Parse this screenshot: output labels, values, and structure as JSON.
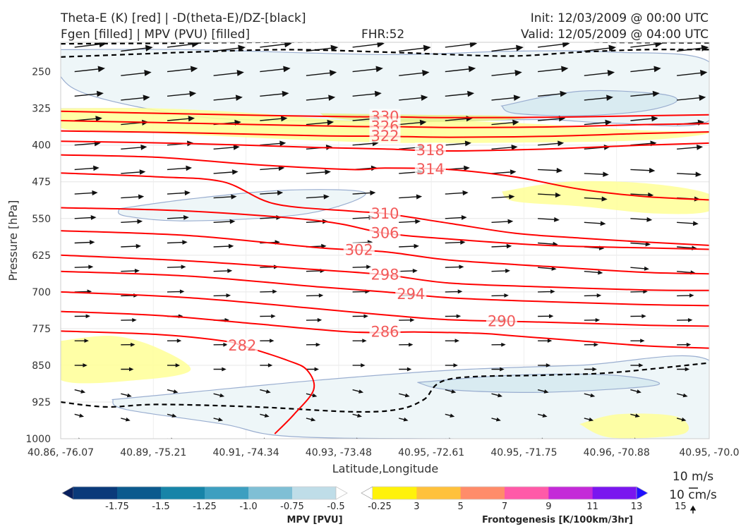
{
  "title": {
    "line1_left": "Theta-E (K) [red] | -D(theta-E)/DZ-[black]",
    "line2_left": "Fgen [filled] | MPV (PVU) [filled]",
    "fhr": "FHR:52",
    "init": "Init: 12/03/2009 @ 00:00 UTC",
    "valid": "Valid: 12/05/2009 @ 04:00 UTC"
  },
  "colors": {
    "theta_e": "#ff0000",
    "theta_e_label": "#f25a5a",
    "ddz": "#000000",
    "fgen_light": "#ffff8c",
    "mpv_light": "#eef6f8",
    "vector": "#111111"
  },
  "vector_key": {
    "label1": "10 m/s",
    "label2": "10 cm/s"
  },
  "chart_data": {
    "type": "cross-section",
    "xlabel": "Latitude,Longitude",
    "ylabel": "Pressure [hPa]",
    "x_ticks": [
      "40.86, -76.07",
      "40.89, -75.21",
      "40.91, -74.34",
      "40.93, -73.48",
      "40.95, -72.61",
      "40.95, -71.75",
      "40.96, -70.88",
      "40.95, -70.0"
    ],
    "y_ticks": [
      250,
      325,
      400,
      475,
      550,
      625,
      700,
      775,
      850,
      925,
      1000
    ],
    "ylim": [
      1000,
      190
    ],
    "grid": true,
    "theta_e_contours": [
      {
        "value": 330,
        "label": "330",
        "points": [
          [
            0,
            331
          ],
          [
            0.15,
            335
          ],
          [
            0.3,
            339
          ],
          [
            0.45,
            342
          ],
          [
            0.5,
            342
          ],
          [
            0.6,
            344
          ],
          [
            0.75,
            343
          ],
          [
            0.9,
            340
          ],
          [
            1,
            338
          ]
        ]
      },
      {
        "value": 326,
        "label": "326",
        "points": [
          [
            0,
            350
          ],
          [
            0.15,
            354
          ],
          [
            0.3,
            358
          ],
          [
            0.45,
            362
          ],
          [
            0.5,
            362
          ],
          [
            0.6,
            364
          ],
          [
            0.75,
            363
          ],
          [
            0.9,
            358
          ],
          [
            1,
            356
          ]
        ]
      },
      {
        "value": 322,
        "label": "322",
        "points": [
          [
            0,
            371
          ],
          [
            0.2,
            375
          ],
          [
            0.4,
            381
          ],
          [
            0.5,
            382
          ],
          [
            0.6,
            384
          ],
          [
            0.75,
            382
          ],
          [
            0.9,
            376
          ],
          [
            1,
            373
          ]
        ]
      },
      {
        "value": 318,
        "label": "318",
        "points": [
          [
            0,
            392
          ],
          [
            0.2,
            397
          ],
          [
            0.4,
            405
          ],
          [
            0.5,
            408
          ],
          [
            0.6,
            412
          ],
          [
            0.75,
            408
          ],
          [
            0.9,
            400
          ],
          [
            1,
            396
          ]
        ]
      },
      {
        "value": 314,
        "label": "314",
        "points": [
          [
            0,
            420
          ],
          [
            0.15,
            425
          ],
          [
            0.3,
            440
          ],
          [
            0.45,
            450
          ],
          [
            0.5,
            447
          ],
          [
            0.6,
            450
          ],
          [
            0.7,
            465
          ],
          [
            0.8,
            490
          ],
          [
            0.9,
            505
          ],
          [
            1,
            512
          ]
        ]
      },
      {
        "value": 310,
        "label": "310",
        "points": [
          [
            0,
            457
          ],
          [
            0.15,
            465
          ],
          [
            0.25,
            475
          ],
          [
            0.33,
            520
          ],
          [
            0.45,
            535
          ],
          [
            0.5,
            540
          ],
          [
            0.6,
            560
          ],
          [
            0.7,
            580
          ],
          [
            0.8,
            590
          ],
          [
            0.9,
            598
          ],
          [
            1,
            605
          ]
        ]
      },
      {
        "value": 306,
        "label": "306",
        "points": [
          [
            0,
            528
          ],
          [
            0.2,
            535
          ],
          [
            0.4,
            555
          ],
          [
            0.5,
            580
          ],
          [
            0.6,
            592
          ],
          [
            0.75,
            605
          ],
          [
            0.9,
            610
          ],
          [
            1,
            613
          ]
        ]
      },
      {
        "value": 302,
        "label": "302",
        "points": [
          [
            0,
            575
          ],
          [
            0.2,
            585
          ],
          [
            0.4,
            610
          ],
          [
            0.5,
            618
          ],
          [
            0.6,
            635
          ],
          [
            0.75,
            648
          ],
          [
            0.9,
            660
          ],
          [
            1,
            663
          ]
        ]
      },
      {
        "value": 298,
        "label": "298",
        "points": [
          [
            0,
            625
          ],
          [
            0.2,
            637
          ],
          [
            0.4,
            655
          ],
          [
            0.5,
            665
          ],
          [
            0.6,
            682
          ],
          [
            0.75,
            690
          ],
          [
            0.9,
            696
          ],
          [
            1,
            697
          ]
        ]
      },
      {
        "value": 294,
        "label": "294",
        "points": [
          [
            0,
            658
          ],
          [
            0.2,
            668
          ],
          [
            0.4,
            690
          ],
          [
            0.5,
            700
          ],
          [
            0.6,
            712
          ],
          [
            0.75,
            720
          ],
          [
            0.9,
            726
          ],
          [
            1,
            728
          ]
        ]
      },
      {
        "value": 290,
        "label": "290",
        "points": [
          [
            0,
            700
          ],
          [
            0.2,
            712
          ],
          [
            0.4,
            735
          ],
          [
            0.5,
            747
          ],
          [
            0.6,
            757
          ],
          [
            0.75,
            762
          ],
          [
            0.9,
            768
          ],
          [
            1,
            770
          ]
        ]
      },
      {
        "value": 286,
        "label": "286",
        "points": [
          [
            0,
            740
          ],
          [
            0.15,
            748
          ],
          [
            0.3,
            765
          ],
          [
            0.45,
            782
          ],
          [
            0.55,
            782
          ],
          [
            0.65,
            785
          ],
          [
            0.7,
            790
          ],
          [
            0.8,
            800
          ],
          [
            0.9,
            810
          ],
          [
            1,
            815
          ]
        ]
      },
      {
        "value": 282,
        "label": "282",
        "points": [
          [
            0,
            780
          ],
          [
            0.15,
            787
          ],
          [
            0.25,
            800
          ],
          [
            0.28,
            810
          ],
          [
            0.35,
            840
          ],
          [
            0.38,
            860
          ],
          [
            0.39,
            900
          ],
          [
            0.36,
            950
          ],
          [
            0.33,
            990
          ]
        ]
      }
    ],
    "ddz_contours": [
      {
        "points": [
          [
            0,
            193
          ],
          [
            0.15,
            192
          ],
          [
            0.3,
            190
          ],
          [
            0.45,
            189
          ],
          [
            0.6,
            189
          ],
          [
            0.75,
            187
          ],
          [
            0.85,
            190
          ],
          [
            1,
            191
          ]
        ]
      },
      {
        "points": [
          [
            0,
            220
          ],
          [
            0.1,
            215
          ],
          [
            0.2,
            210
          ],
          [
            0.35,
            205
          ],
          [
            0.5,
            210
          ],
          [
            0.6,
            215
          ],
          [
            0.7,
            218
          ],
          [
            0.8,
            210
          ],
          [
            0.9,
            205
          ],
          [
            1,
            205
          ]
        ]
      },
      {
        "points": [
          [
            0,
            925
          ],
          [
            0.07,
            935
          ],
          [
            0.15,
            930
          ],
          [
            0.3,
            935
          ],
          [
            0.45,
            945
          ],
          [
            0.52,
            940
          ],
          [
            0.56,
            920
          ],
          [
            0.6,
            878
          ],
          [
            0.75,
            870
          ],
          [
            0.85,
            865
          ],
          [
            1,
            845
          ]
        ]
      }
    ],
    "fgen_regions": [
      {
        "level": "3",
        "points": [
          [
            0,
            325
          ],
          [
            0.15,
            325
          ],
          [
            0.3,
            335
          ],
          [
            0.45,
            350
          ],
          [
            0.6,
            350
          ],
          [
            0.75,
            358
          ],
          [
            0.9,
            370
          ],
          [
            1,
            375
          ],
          [
            0.9,
            390
          ],
          [
            0.7,
            395
          ],
          [
            0.5,
            395
          ],
          [
            0.3,
            385
          ],
          [
            0.1,
            372
          ],
          [
            0,
            365
          ]
        ]
      },
      {
        "level": "5",
        "points": [
          [
            0.4,
            335
          ],
          [
            0.55,
            338
          ],
          [
            0.68,
            340
          ],
          [
            0.72,
            345
          ],
          [
            0.62,
            352
          ],
          [
            0.5,
            352
          ],
          [
            0.42,
            345
          ]
        ]
      },
      {
        "level": "3",
        "points": [
          [
            0.68,
            495
          ],
          [
            0.78,
            475
          ],
          [
            0.9,
            478
          ],
          [
            1,
            500
          ],
          [
            1,
            535
          ],
          [
            0.92,
            540
          ],
          [
            0.8,
            525
          ],
          [
            0.7,
            515
          ]
        ]
      },
      {
        "level": "3",
        "points": [
          [
            0,
            800
          ],
          [
            0.08,
            790
          ],
          [
            0.15,
            815
          ],
          [
            0.2,
            860
          ],
          [
            0.12,
            880
          ],
          [
            0,
            880
          ]
        ]
      },
      {
        "level": "3",
        "points": [
          [
            0.8,
            970
          ],
          [
            0.86,
            950
          ],
          [
            0.95,
            955
          ],
          [
            0.96,
            990
          ],
          [
            0.85,
            998
          ]
        ]
      }
    ],
    "mpv_regions": [
      {
        "level": "-0.25",
        "points": [
          [
            0,
            205
          ],
          [
            0.2,
            205
          ],
          [
            0.5,
            215
          ],
          [
            0.7,
            208
          ],
          [
            0.85,
            210
          ],
          [
            1,
            230
          ],
          [
            1,
            350
          ],
          [
            0.85,
            355
          ],
          [
            0.75,
            348
          ],
          [
            0.6,
            350
          ],
          [
            0.35,
            350
          ],
          [
            0.2,
            340
          ],
          [
            0.05,
            300
          ],
          [
            0,
            260
          ]
        ]
      },
      {
        "level": "-0.5",
        "points": [
          [
            0.68,
            320
          ],
          [
            0.8,
            290
          ],
          [
            0.92,
            295
          ],
          [
            0.95,
            310
          ],
          [
            0.9,
            330
          ],
          [
            0.8,
            340
          ],
          [
            0.7,
            335
          ]
        ]
      },
      {
        "level": "-0.25",
        "points": [
          [
            0.09,
            530
          ],
          [
            0.2,
            510
          ],
          [
            0.35,
            492
          ],
          [
            0.47,
            498
          ],
          [
            0.38,
            540
          ],
          [
            0.2,
            555
          ],
          [
            0.1,
            545
          ]
        ]
      },
      {
        "level": "-0.25",
        "points": [
          [
            0.08,
            920
          ],
          [
            0.2,
            905
          ],
          [
            0.4,
            880
          ],
          [
            0.6,
            860
          ],
          [
            0.8,
            850
          ],
          [
            1,
            840
          ],
          [
            1,
            1000
          ],
          [
            0.6,
            1000
          ],
          [
            0.35,
            995
          ],
          [
            0.25,
            970
          ],
          [
            0.1,
            940
          ]
        ]
      },
      {
        "level": "-0.5",
        "points": [
          [
            0.55,
            885
          ],
          [
            0.7,
            870
          ],
          [
            0.85,
            870
          ],
          [
            0.92,
            890
          ],
          [
            0.75,
            905
          ],
          [
            0.6,
            900
          ]
        ]
      }
    ],
    "colorbar_mpv": {
      "label": "MPV [PVU]",
      "ticks": [
        "-1.75",
        "-1.5",
        "-1.25",
        "-1.0",
        "-0.75",
        "-0.5",
        "-0.25"
      ],
      "colors": [
        "#08205e",
        "#0a3a7a",
        "#0b5a8e",
        "#1784a8",
        "#3d9fc0",
        "#7fbfd5",
        "#bfdde8",
        "#ffffff"
      ]
    },
    "colorbar_fgen": {
      "label": "Frontogenesis [K/100km/3hr]",
      "ticks": [
        "3",
        "5",
        "7",
        "9",
        "11",
        "13",
        "15"
      ],
      "colors": [
        "#ffffff",
        "#fff20a",
        "#ffc13c",
        "#ff8c6a",
        "#ff5aa8",
        "#c42ad8",
        "#7a16ef",
        "#2010ff"
      ]
    }
  }
}
